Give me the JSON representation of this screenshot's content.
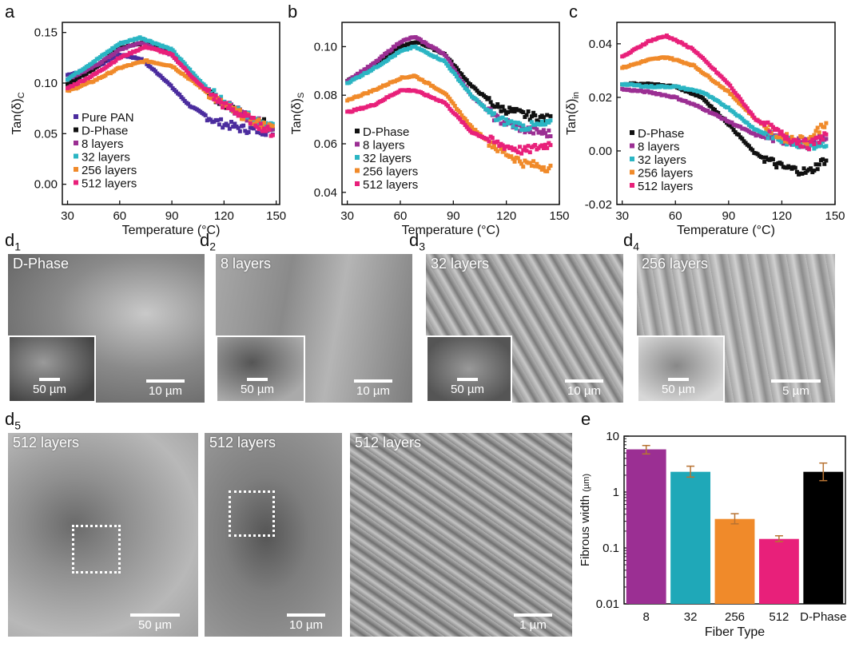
{
  "panel_labels": {
    "a": "a",
    "b": "b",
    "c": "c",
    "d1": "d",
    "d1_sub": "1",
    "d2": "d",
    "d2_sub": "2",
    "d3": "d",
    "d3_sub": "3",
    "d4": "d",
    "d4_sub": "4",
    "d5": "d",
    "d5_sub": "5",
    "e": "e"
  },
  "colors": {
    "pure_pan": "#4b2c9e",
    "d_phase": "#111111",
    "l8": "#9b2f93",
    "l32": "#2bb5c3",
    "l256": "#f08a2a",
    "l512": "#e8207a"
  },
  "sem": {
    "d1": {
      "label": "D-Phase",
      "scale": "10 µm",
      "inset_scale": "50 µm"
    },
    "d2": {
      "label": "8 layers",
      "scale": "10 µm",
      "inset_scale": "50 µm"
    },
    "d3": {
      "label": "32 layers",
      "scale": "10 µm",
      "inset_scale": "50 µm"
    },
    "d4": {
      "label": "256 layers",
      "scale": "5 µm",
      "inset_scale": "50 µm"
    },
    "d5a": {
      "label": "512 layers",
      "scale": "50 µm"
    },
    "d5b": {
      "label": "512 layers",
      "scale": "10 µm"
    },
    "d5c": {
      "label": "512 layers",
      "scale": "1 µm"
    }
  },
  "chart_data": [
    {
      "id": "a",
      "type": "scatter",
      "ylabel": "Tan(δ)",
      "ylabel_sub": "C",
      "xlabel": "Temperature (°C)",
      "xlim": [
        27,
        152
      ],
      "ylim": [
        -0.02,
        0.16
      ],
      "xticks": [
        30,
        60,
        90,
        120,
        150
      ],
      "xtick_labels": [
        "30",
        "60",
        "90",
        "120",
        "150"
      ],
      "yticks": [
        0.0,
        0.05,
        0.1,
        0.15
      ],
      "ytick_labels": [
        "0.00",
        "0.05",
        "0.10",
        "0.15"
      ],
      "series": [
        {
          "name": "Pure PAN",
          "color": "#4b2c9e",
          "x": [
            30,
            45,
            60,
            72,
            85,
            100,
            115,
            130,
            148
          ],
          "y": [
            0.108,
            0.115,
            0.128,
            0.124,
            0.105,
            0.078,
            0.062,
            0.055,
            0.052
          ]
        },
        {
          "name": "D-Phase",
          "color": "#111111",
          "x": [
            30,
            45,
            60,
            75,
            90,
            105,
            120,
            135,
            148
          ],
          "y": [
            0.099,
            0.114,
            0.135,
            0.14,
            0.13,
            0.1,
            0.078,
            0.066,
            0.058
          ]
        },
        {
          "name": "8 layers",
          "color": "#9b2f93",
          "x": [
            30,
            45,
            60,
            72,
            90,
            105,
            120,
            135,
            148
          ],
          "y": [
            0.104,
            0.116,
            0.133,
            0.14,
            0.128,
            0.1,
            0.08,
            0.065,
            0.056
          ]
        },
        {
          "name": "32 layers",
          "color": "#2bb5c3",
          "x": [
            30,
            45,
            60,
            72,
            90,
            105,
            120,
            135,
            148
          ],
          "y": [
            0.104,
            0.121,
            0.139,
            0.145,
            0.133,
            0.104,
            0.08,
            0.066,
            0.058
          ]
        },
        {
          "name": "256 layers",
          "color": "#f08a2a",
          "x": [
            30,
            45,
            60,
            75,
            90,
            105,
            120,
            135,
            148
          ],
          "y": [
            0.092,
            0.102,
            0.115,
            0.122,
            0.117,
            0.098,
            0.078,
            0.064,
            0.055
          ]
        },
        {
          "name": "512 layers",
          "color": "#e8207a",
          "x": [
            30,
            45,
            60,
            75,
            90,
            105,
            120,
            135,
            148
          ],
          "y": [
            0.095,
            0.108,
            0.125,
            0.136,
            0.128,
            0.1,
            0.078,
            0.064,
            0.05
          ]
        }
      ]
    },
    {
      "id": "b",
      "type": "scatter",
      "ylabel": "Tan(δ)",
      "ylabel_sub": "S",
      "xlabel": "Temperature (°C)",
      "xlim": [
        27,
        150
      ],
      "ylim": [
        0.035,
        0.11
      ],
      "xticks": [
        30,
        60,
        90,
        120,
        150
      ],
      "xtick_labels": [
        "30",
        "60",
        "90",
        "120",
        "150"
      ],
      "yticks": [
        0.04,
        0.06,
        0.08,
        0.1
      ],
      "ytick_labels": [
        "0.04",
        "0.06",
        "0.08",
        "0.10"
      ],
      "series": [
        {
          "name": "D-Phase",
          "color": "#111111",
          "x": [
            30,
            45,
            60,
            70,
            85,
            100,
            115,
            130,
            145
          ],
          "y": [
            0.086,
            0.092,
            0.1,
            0.102,
            0.097,
            0.084,
            0.075,
            0.072,
            0.07
          ]
        },
        {
          "name": "8 layers",
          "color": "#9b2f93",
          "x": [
            30,
            45,
            60,
            68,
            85,
            100,
            115,
            130,
            145
          ],
          "y": [
            0.086,
            0.093,
            0.102,
            0.104,
            0.097,
            0.08,
            0.07,
            0.066,
            0.064
          ]
        },
        {
          "name": "32 layers",
          "color": "#2bb5c3",
          "x": [
            30,
            45,
            60,
            68,
            85,
            100,
            115,
            130,
            145
          ],
          "y": [
            0.085,
            0.091,
            0.098,
            0.1,
            0.094,
            0.08,
            0.07,
            0.067,
            0.068
          ]
        },
        {
          "name": "256 layers",
          "color": "#f08a2a",
          "x": [
            30,
            45,
            60,
            68,
            85,
            100,
            115,
            130,
            145
          ],
          "y": [
            0.078,
            0.082,
            0.087,
            0.088,
            0.081,
            0.067,
            0.058,
            0.052,
            0.05
          ]
        },
        {
          "name": "512 layers",
          "color": "#e8207a",
          "x": [
            30,
            45,
            60,
            68,
            85,
            100,
            115,
            130,
            145
          ],
          "y": [
            0.073,
            0.076,
            0.082,
            0.082,
            0.077,
            0.065,
            0.06,
            0.057,
            0.06
          ]
        }
      ]
    },
    {
      "id": "c",
      "type": "scatter",
      "ylabel": "Tan(δ)",
      "ylabel_sub": "in",
      "xlabel": "Temperature (°C)",
      "xlim": [
        27,
        150
      ],
      "ylim": [
        -0.02,
        0.048
      ],
      "xticks": [
        30,
        60,
        90,
        120,
        150
      ],
      "xtick_labels": [
        "30",
        "60",
        "90",
        "120",
        "150"
      ],
      "yticks": [
        -0.02,
        0.0,
        0.02,
        0.04
      ],
      "ytick_labels": [
        "-0.02",
        "0.00",
        "0.02",
        "0.04"
      ],
      "series": [
        {
          "name": "D-Phase",
          "color": "#111111",
          "x": [
            30,
            45,
            60,
            75,
            90,
            105,
            120,
            135,
            145
          ],
          "y": [
            0.025,
            0.025,
            0.024,
            0.02,
            0.01,
            -0.001,
            -0.006,
            -0.008,
            -0.003
          ]
        },
        {
          "name": "8 layers",
          "color": "#9b2f93",
          "x": [
            30,
            45,
            60,
            75,
            90,
            105,
            120,
            135,
            145
          ],
          "y": [
            0.023,
            0.022,
            0.02,
            0.016,
            0.011,
            0.006,
            0.004,
            0.003,
            0.005
          ]
        },
        {
          "name": "32 layers",
          "color": "#2bb5c3",
          "x": [
            30,
            45,
            60,
            75,
            90,
            105,
            120,
            135,
            145
          ],
          "y": [
            0.025,
            0.024,
            0.024,
            0.022,
            0.016,
            0.008,
            0.004,
            0.002,
            0.003
          ]
        },
        {
          "name": "256 layers",
          "color": "#f08a2a",
          "x": [
            30,
            45,
            55,
            70,
            90,
            105,
            120,
            135,
            145
          ],
          "y": [
            0.031,
            0.034,
            0.035,
            0.032,
            0.022,
            0.012,
            0.005,
            0.004,
            0.011
          ]
        },
        {
          "name": "512 layers",
          "color": "#e8207a",
          "x": [
            30,
            45,
            55,
            70,
            90,
            105,
            120,
            135,
            145
          ],
          "y": [
            0.035,
            0.041,
            0.043,
            0.038,
            0.025,
            0.012,
            0.006,
            0.002,
            0.006
          ]
        }
      ]
    },
    {
      "id": "e",
      "type": "bar",
      "log_y": true,
      "ylabel": "Fibrous width",
      "ylabel_unit": "(µm)",
      "xlabel": "Fiber Type",
      "categories": [
        "8",
        "32",
        "256",
        "512",
        "D-Phase"
      ],
      "values": [
        5.8,
        2.3,
        0.33,
        0.145,
        2.3
      ],
      "errors": [
        [
          4.8,
          6.8
        ],
        [
          1.85,
          2.9
        ],
        [
          0.27,
          0.41
        ],
        [
          0.13,
          0.165
        ],
        [
          1.6,
          3.3
        ]
      ],
      "colors": [
        "#9b2f93",
        "#1fa8b8",
        "#f08a2a",
        "#e8207a",
        "#000000"
      ],
      "error_color": "#b87333",
      "ylim": [
        0.01,
        10
      ],
      "yticks": [
        0.01,
        0.1,
        1,
        10
      ],
      "ytick_labels": [
        "0.01",
        "0.1",
        "1",
        "10"
      ]
    }
  ]
}
